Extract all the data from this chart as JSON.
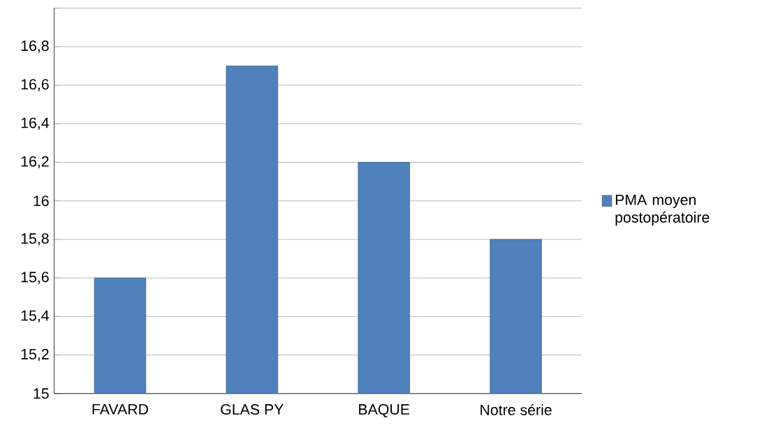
{
  "chart_data": {
    "type": "bar",
    "categories": [
      "FAVARD",
      "GLAS PY",
      "BAQUE",
      "Notre série"
    ],
    "series": [
      {
        "name": "PMA moyen postopératoire",
        "color": "#4f81bd",
        "values": [
          15.6,
          16.7,
          16.2,
          15.8
        ]
      }
    ],
    "ylim": [
      15,
      17
    ],
    "yticks": [
      {
        "value": 15,
        "label": "15"
      },
      {
        "value": 15.2,
        "label": "15,2"
      },
      {
        "value": 15.4,
        "label": "15,4"
      },
      {
        "value": 15.6,
        "label": "15,6"
      },
      {
        "value": 15.8,
        "label": "15,8"
      },
      {
        "value": 16,
        "label": "16"
      },
      {
        "value": 16.2,
        "label": "16,2"
      },
      {
        "value": 16.4,
        "label": "16,4"
      },
      {
        "value": 16.6,
        "label": "16,6"
      },
      {
        "value": 16.8,
        "label": "16,8"
      },
      {
        "value": 17,
        "label": null
      }
    ],
    "grid": "y",
    "legend": "right"
  }
}
